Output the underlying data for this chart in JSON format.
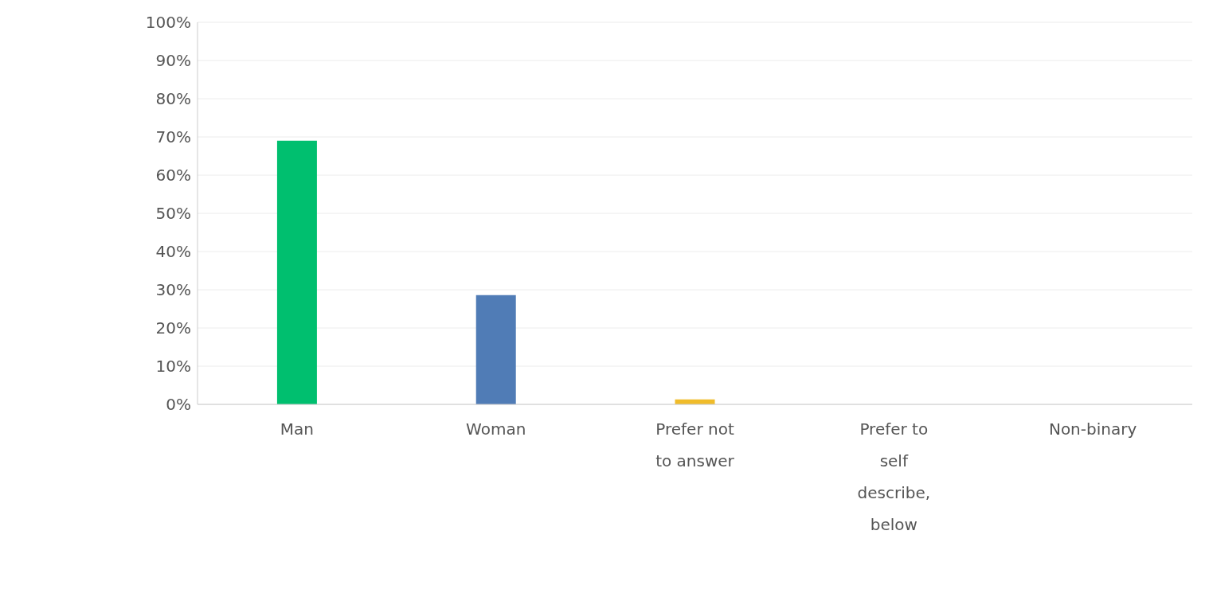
{
  "chart_data": {
    "type": "bar",
    "categories": [
      "Man",
      "Woman",
      "Prefer not to answer",
      "Prefer to self describe, below",
      "Non-binary"
    ],
    "values": [
      69,
      28.6,
      1.3,
      0,
      0
    ],
    "colors": [
      "#00bf6f",
      "#507cb6",
      "#f0bc2a",
      "#6bc8cd",
      "#d25f90"
    ],
    "ylim": [
      0,
      100
    ],
    "yticks": [
      {
        "value": 0,
        "label": "0%"
      },
      {
        "value": 10,
        "label": "10%"
      },
      {
        "value": 20,
        "label": "20%"
      },
      {
        "value": 30,
        "label": "30%"
      },
      {
        "value": 40,
        "label": "40%"
      },
      {
        "value": 50,
        "label": "50%"
      },
      {
        "value": 60,
        "label": "60%"
      },
      {
        "value": 70,
        "label": "70%"
      },
      {
        "value": 80,
        "label": "80%"
      },
      {
        "value": 90,
        "label": "90%"
      },
      {
        "value": 100,
        "label": "100%"
      }
    ],
    "grid": "y",
    "legend": false
  }
}
